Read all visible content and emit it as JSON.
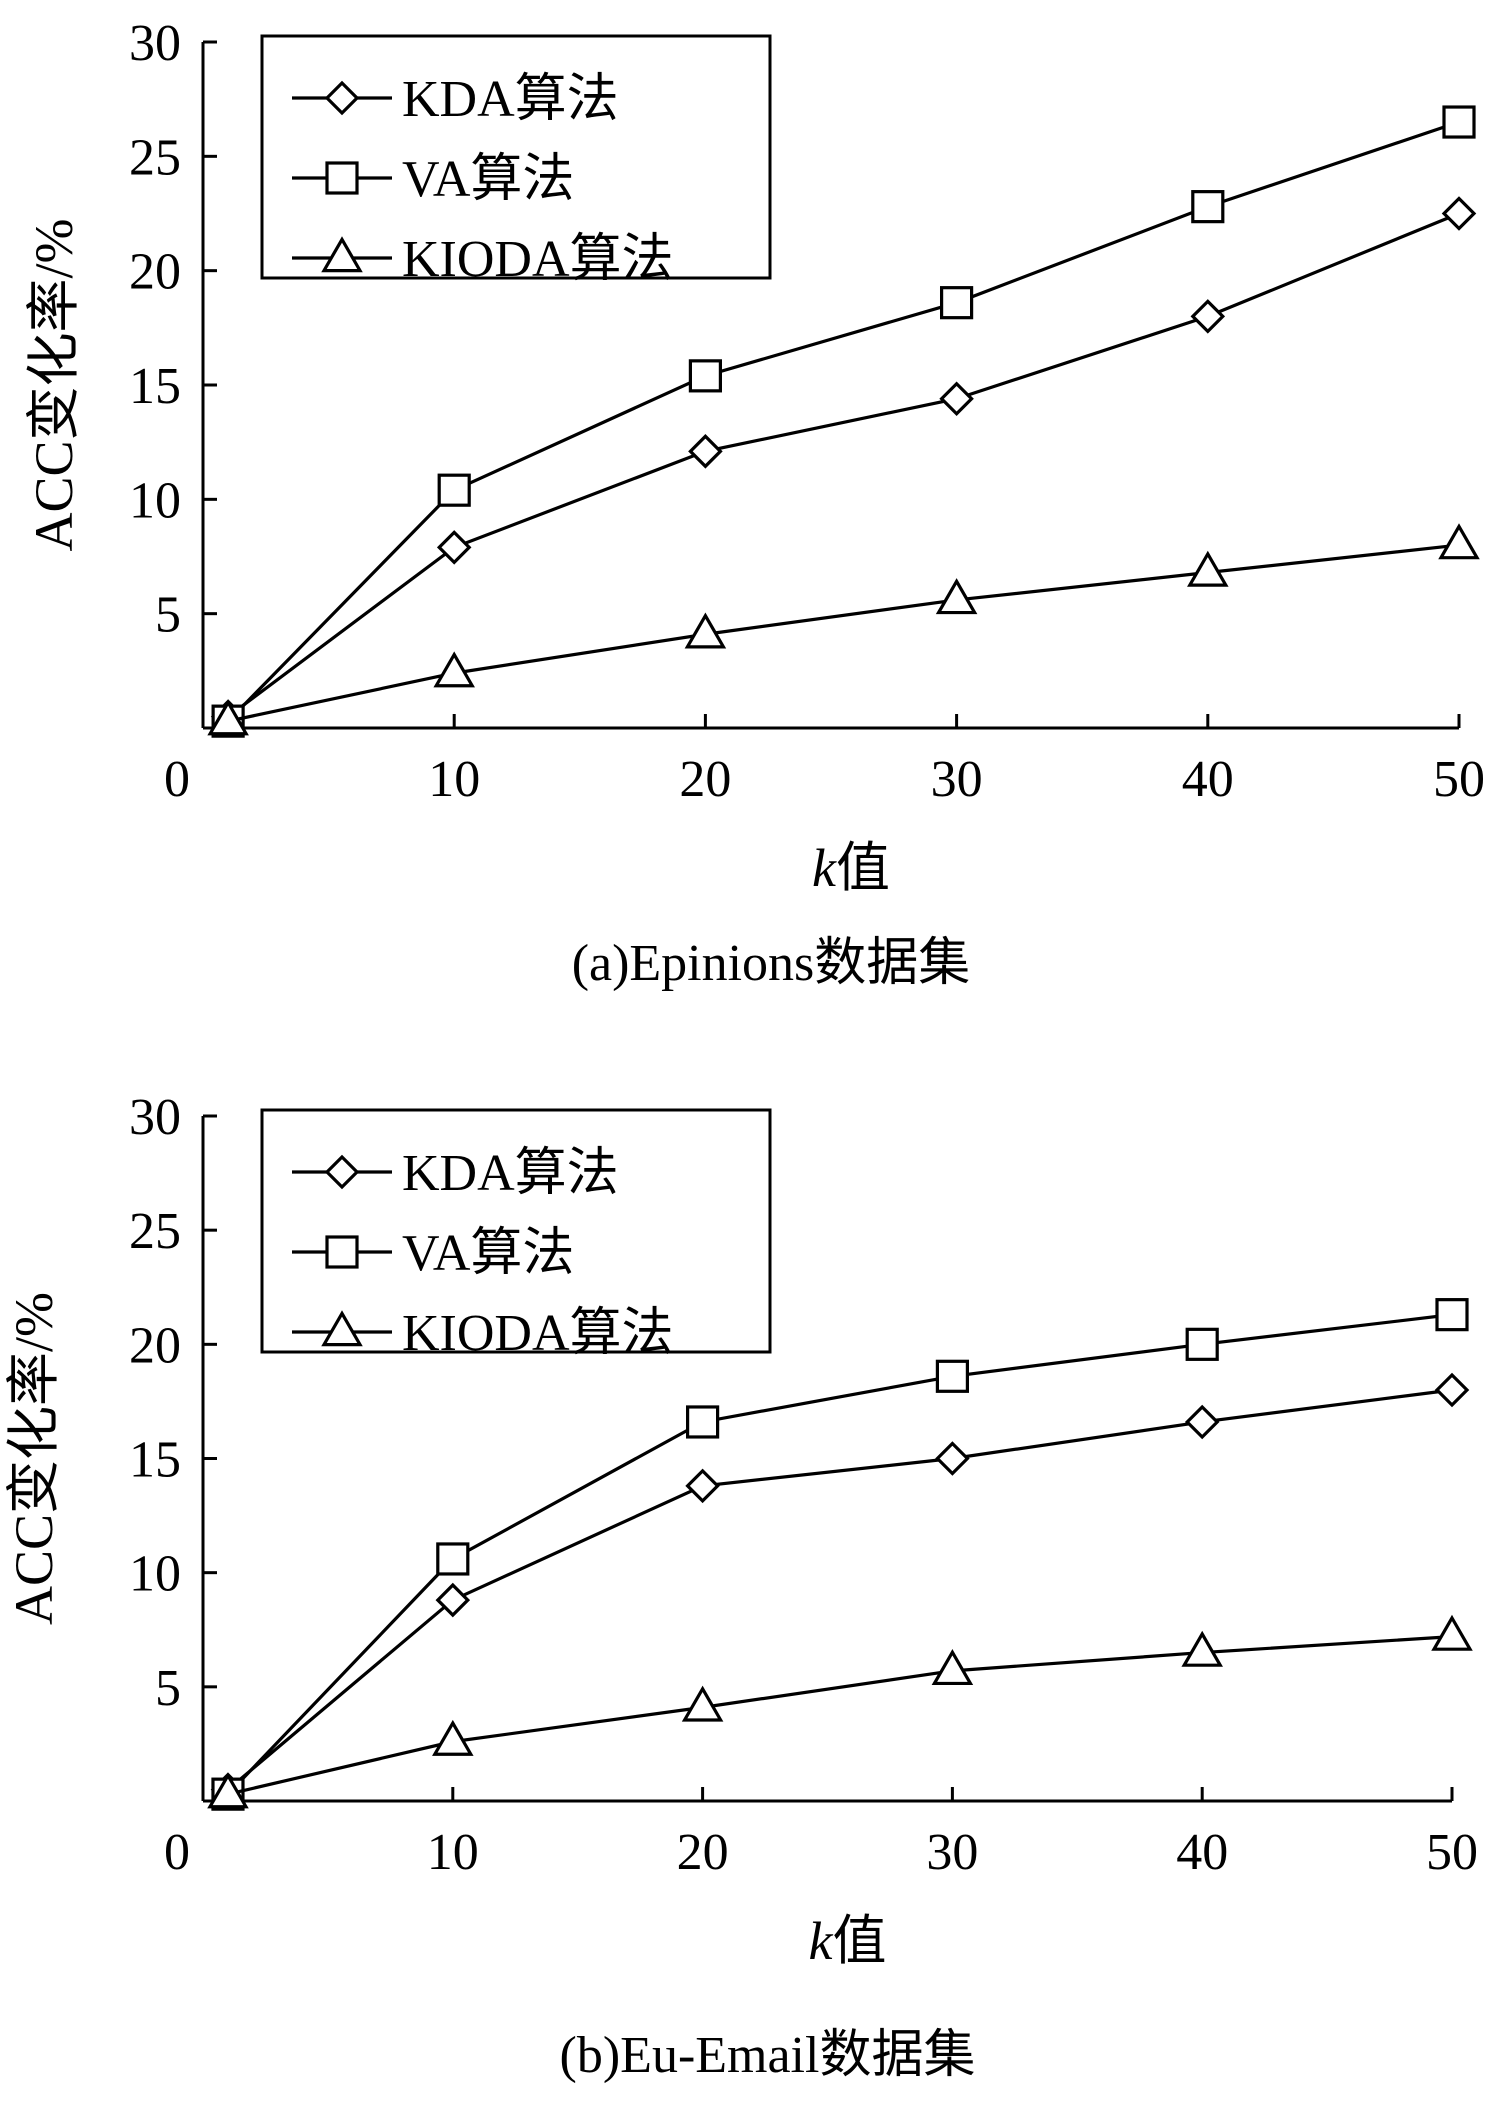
{
  "chart_data": [
    {
      "type": "line",
      "caption": "(a)Epinions数据集",
      "xlabel": "k值",
      "ylabel": "ACC变化率/%",
      "xlim": [
        0,
        50
      ],
      "ylim": [
        0,
        30
      ],
      "x_ticks": [
        0,
        10,
        20,
        30,
        40,
        50
      ],
      "y_ticks": [
        5,
        10,
        15,
        20,
        25,
        30
      ],
      "legend_position": "top-left",
      "grid": false,
      "series": [
        {
          "name": "KDA算法",
          "marker": "diamond",
          "x": [
            1,
            10,
            20,
            30,
            40,
            50
          ],
          "values": [
            0.5,
            7.9,
            12.1,
            14.4,
            18.0,
            22.5
          ]
        },
        {
          "name": "VA算法",
          "marker": "square",
          "x": [
            1,
            10,
            20,
            30,
            40,
            50
          ],
          "values": [
            0.3,
            10.4,
            15.4,
            18.6,
            22.8,
            26.5
          ]
        },
        {
          "name": "KIODA算法",
          "marker": "triangle",
          "x": [
            1,
            10,
            20,
            30,
            40,
            50
          ],
          "values": [
            0.3,
            2.4,
            4.1,
            5.6,
            6.8,
            8.0
          ]
        }
      ]
    },
    {
      "type": "line",
      "caption": "(b)Eu-Email数据集",
      "xlabel": "k值",
      "ylabel": "ACC变化率/%",
      "xlim": [
        0,
        50
      ],
      "ylim": [
        0,
        30
      ],
      "x_ticks": [
        0,
        10,
        20,
        30,
        40,
        50
      ],
      "y_ticks": [
        5,
        10,
        15,
        20,
        25,
        30
      ],
      "legend_position": "top-left",
      "grid": false,
      "series": [
        {
          "name": "KDA算法",
          "marker": "diamond",
          "x": [
            1,
            10,
            20,
            30,
            40,
            50
          ],
          "values": [
            0.5,
            8.8,
            13.8,
            15.0,
            16.6,
            18.0
          ]
        },
        {
          "name": "VA算法",
          "marker": "square",
          "x": [
            1,
            10,
            20,
            30,
            40,
            50
          ],
          "values": [
            0.3,
            10.6,
            16.6,
            18.6,
            20.0,
            21.3
          ]
        },
        {
          "name": "KIODA算法",
          "marker": "triangle",
          "x": [
            1,
            10,
            20,
            30,
            40,
            50
          ],
          "values": [
            0.3,
            2.6,
            4.1,
            5.7,
            6.5,
            7.2
          ]
        }
      ]
    }
  ]
}
